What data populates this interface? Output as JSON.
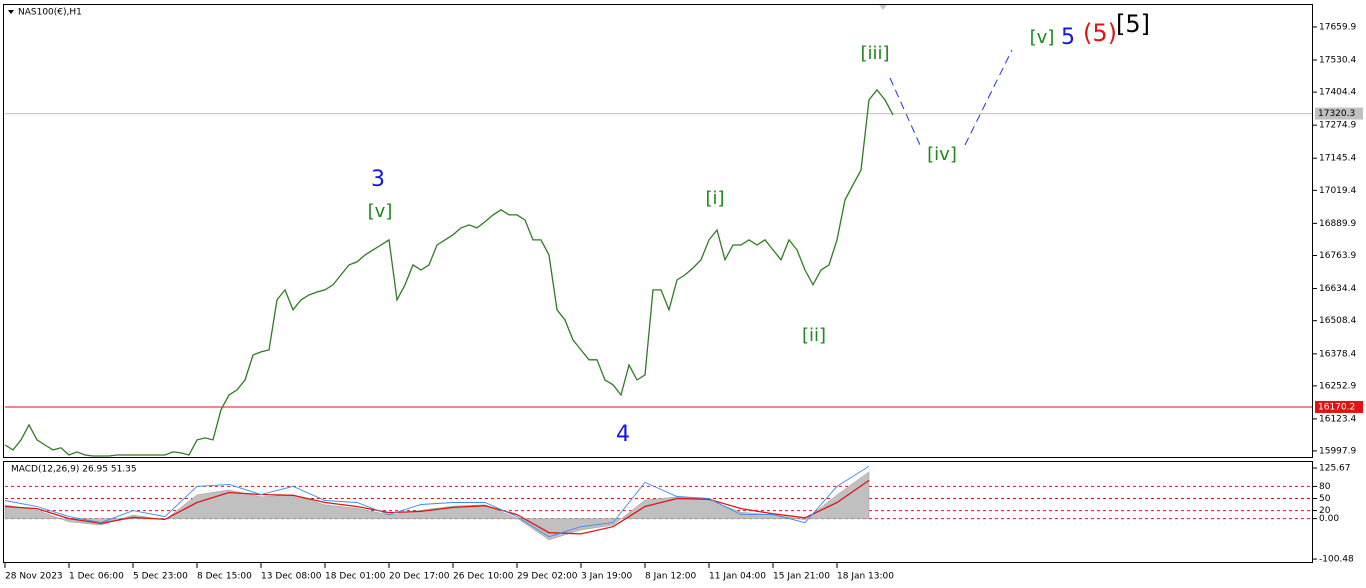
{
  "chart_data": [
    {
      "type": "line",
      "title": "NAS100(€),H1",
      "color": "#2f7d22",
      "values": [
        16021,
        16002,
        16041,
        16100,
        16041,
        16021,
        16002,
        16010,
        15982,
        15994,
        15982,
        15978,
        15978,
        15978,
        15982,
        15982,
        15982,
        15982,
        15982,
        15982,
        15982,
        15994,
        15990,
        15982,
        16041,
        16049,
        16041,
        16159,
        16217,
        16237,
        16276,
        16374,
        16386,
        16394,
        16590,
        16629,
        16551,
        16590,
        16609,
        16621,
        16629,
        16649,
        16688,
        16727,
        16739,
        16766,
        16786,
        16805,
        16825,
        16590,
        16649,
        16727,
        16707,
        16727,
        16805,
        16825,
        16845,
        16872,
        16884,
        16872,
        16896,
        16923,
        16943,
        16923,
        16923,
        16903,
        16825,
        16825,
        16766,
        16551,
        16511,
        16433,
        16394,
        16355,
        16355,
        16276,
        16257,
        16217,
        16335,
        16276,
        16296,
        16629,
        16629,
        16551,
        16668,
        16688,
        16715,
        16747,
        16825,
        16864,
        16747,
        16805,
        16805,
        16825,
        16805,
        16825,
        16786,
        16747,
        16825,
        16786,
        16707,
        16649,
        16707,
        16727,
        16825,
        16982,
        17041,
        17099,
        17374,
        17413,
        17374,
        17315
      ],
      "xlim": [
        0,
        163.375
      ],
      "ylim": [
        15974,
        17746
      ],
      "yticks": [
        17659.9,
        17530.4,
        17404.4,
        17274.9,
        17145.4,
        17019.4,
        16889.9,
        16763.9,
        16634.4,
        16508.4,
        16378.4,
        16252.9,
        16123.4,
        15997.9
      ],
      "xticks": [
        {
          "value": 0,
          "label": "28 Nov 2023"
        },
        {
          "value": 8,
          "label": "1 Dec 06:00"
        },
        {
          "value": 16,
          "label": "5 Dec 23:00"
        },
        {
          "value": 24,
          "label": "8 Dec 15:00"
        },
        {
          "value": 32,
          "label": "13 Dec 08:00"
        },
        {
          "value": 40,
          "label": "18 Dec 01:00"
        },
        {
          "value": 48,
          "label": "20 Dec 17:00"
        },
        {
          "value": 56,
          "label": "26 Dec 10:00"
        },
        {
          "value": 64,
          "label": "29 Dec 02:00"
        },
        {
          "value": 72,
          "label": "3 Jan 19:00"
        },
        {
          "value": 80,
          "label": "8 Jan 12:00"
        },
        {
          "value": 88,
          "label": "11 Jan 04:00"
        },
        {
          "value": 96,
          "label": "15 Jan 21:00"
        },
        {
          "value": 104,
          "label": "18 Jan 13:00"
        }
      ],
      "price_line": 17320.3,
      "support_line": 16170.2,
      "annotations": [
        {
          "text": "3",
          "color": "#1414e6"
        },
        {
          "text": "[v]",
          "color": "#1c8a1c"
        },
        {
          "text": "4",
          "color": "#1414e6"
        },
        {
          "text": "[i]",
          "color": "#1c8a1c"
        },
        {
          "text": "[ii]",
          "color": "#1c8a1c"
        },
        {
          "text": "[iii]",
          "color": "#1c8a1c"
        },
        {
          "text": "[iv]",
          "color": "#1c8a1c"
        },
        {
          "text": "[v]",
          "color": "#1c8a1c"
        },
        {
          "text": "5",
          "color": "#1414e6"
        },
        {
          "text": "(5)",
          "color": "#e01414"
        },
        {
          "text": "[5]",
          "color": "#000000"
        }
      ]
    },
    {
      "type": "macd",
      "title": "MACD(12,26,9) 26.95 51.35",
      "x": [
        0,
        4,
        8,
        12,
        16,
        20,
        24,
        28,
        32,
        36,
        40,
        44,
        48,
        52,
        56,
        60,
        64,
        68,
        72,
        76,
        80,
        84,
        88,
        92,
        96,
        100,
        104,
        108
      ],
      "xlim": [
        0,
        163.375
      ],
      "ylim": [
        -107.8,
        140.7
      ],
      "yticks": [
        125.67,
        80,
        50,
        {
          "value": 0,
          "label": "0.00"
        },
        20,
        -100.48
      ],
      "series": [
        {
          "name": "MACD",
          "color": "#c0c0c0",
          "values": [
            34,
            21,
            -8,
            -16,
            9,
            -3,
            59,
            71,
            54,
            59,
            34,
            26,
            9,
            21,
            31,
            34,
            1,
            -53,
            -28,
            -16,
            46,
            54,
            46,
            16,
            9,
            -3,
            59,
            116
          ]
        },
        {
          "name": "Signal",
          "color": "#e01414",
          "values": [
            30,
            25,
            0,
            -12,
            3,
            -2,
            40,
            65,
            60,
            58,
            40,
            30,
            15,
            18,
            28,
            32,
            10,
            -35,
            -38,
            -20,
            30,
            50,
            48,
            25,
            12,
            2,
            40,
            95
          ]
        },
        {
          "name": "Line",
          "color": "#3c8cf0",
          "values": [
            45,
            30,
            5,
            -10,
            20,
            5,
            80,
            85,
            60,
            80,
            45,
            40,
            10,
            35,
            40,
            40,
            5,
            -45,
            -20,
            -10,
            90,
            55,
            50,
            10,
            10,
            -10,
            80,
            130
          ]
        }
      ]
    }
  ]
}
